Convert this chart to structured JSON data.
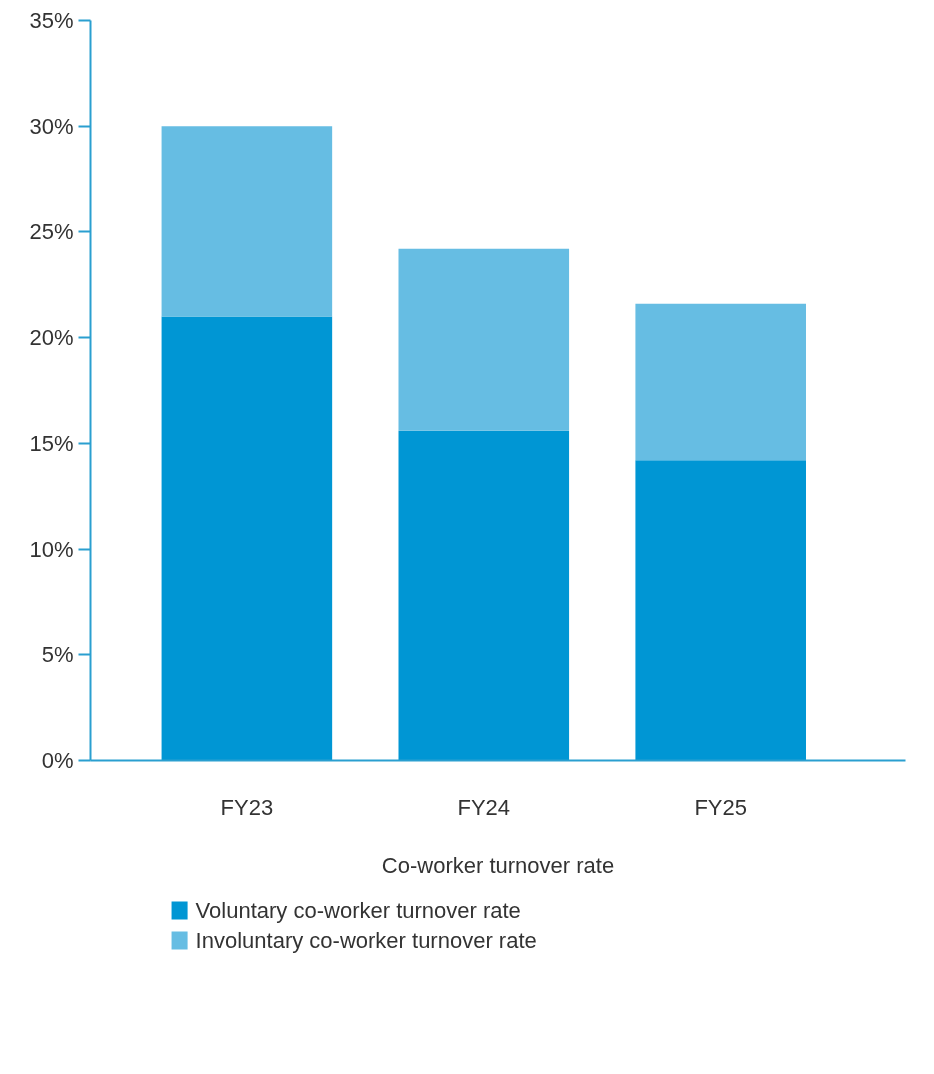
{
  "chart_data": {
    "type": "bar",
    "stacked": true,
    "xlabel": "Co-worker turnover rate",
    "categories": [
      "FY23",
      "FY24",
      "FY25"
    ],
    "series": [
      {
        "name": "Voluntary co-worker turnover rate",
        "color": "#0096d4",
        "values": [
          21.0,
          15.6,
          14.2
        ]
      },
      {
        "name": "Involuntary co-worker turnover rate",
        "color": "#66bde3",
        "values": [
          9.0,
          8.6,
          7.4
        ]
      }
    ],
    "ylim": [
      0,
      35
    ],
    "yticks": [
      {
        "value": 0,
        "label": "0%"
      },
      {
        "value": 5,
        "label": "5%"
      },
      {
        "value": 10,
        "label": "10%"
      },
      {
        "value": 15,
        "label": "15%"
      },
      {
        "value": 20,
        "label": "20%"
      },
      {
        "value": 25,
        "label": "25%"
      },
      {
        "value": 30,
        "label": "30%"
      },
      {
        "value": 35,
        "label": "35%"
      }
    ],
    "grid": false,
    "legend": "bottom left"
  }
}
